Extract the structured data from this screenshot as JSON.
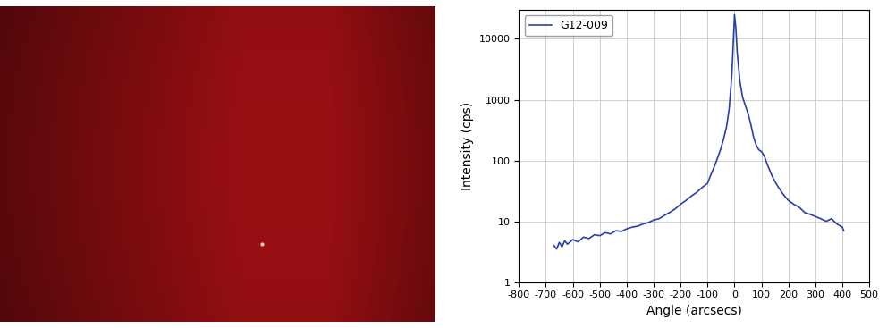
{
  "chart_data": {
    "type": "line",
    "log": "y",
    "grid": true,
    "legend": "upper left",
    "x_label": "Angle (arcsecs)",
    "y_label": "Intensity (cps)",
    "x": [
      -670,
      -660,
      -650,
      -640,
      -630,
      -620,
      -600,
      -580,
      -560,
      -540,
      -520,
      -500,
      -480,
      -460,
      -440,
      -420,
      -400,
      -380,
      -360,
      -340,
      -320,
      -300,
      -280,
      -260,
      -240,
      -220,
      -200,
      -180,
      -160,
      -140,
      -120,
      -100,
      -90,
      -80,
      -70,
      -60,
      -50,
      -40,
      -30,
      -20,
      -10,
      0,
      5,
      10,
      20,
      30,
      40,
      50,
      60,
      70,
      80,
      90,
      100,
      110,
      120,
      130,
      140,
      150,
      160,
      180,
      200,
      220,
      240,
      260,
      280,
      300,
      320,
      340,
      360,
      380,
      400,
      405
    ],
    "series": [
      {
        "name": "G12-009",
        "color": "#2b3fa6",
        "values": [
          4,
          3.5,
          4.5,
          3.8,
          4.8,
          4.2,
          5,
          4.6,
          5.5,
          5.2,
          6,
          5.8,
          6.5,
          6.2,
          7,
          6.8,
          7.5,
          8,
          8.3,
          9,
          9.5,
          10.5,
          11,
          12.5,
          14,
          16,
          19,
          22,
          26,
          30,
          36,
          42,
          55,
          70,
          90,
          120,
          160,
          230,
          350,
          700,
          2500,
          25000,
          15000,
          6000,
          2000,
          1100,
          800,
          600,
          400,
          250,
          180,
          150,
          140,
          120,
          90,
          70,
          55,
          45,
          38,
          28,
          22,
          19,
          17,
          14,
          13,
          12,
          11,
          10,
          11,
          9,
          8,
          7
        ]
      }
    ],
    "xlim": [
      -800,
      500
    ],
    "xticks": [
      -800,
      -700,
      -600,
      -500,
      -400,
      -300,
      -200,
      -100,
      0,
      100,
      200,
      300,
      400,
      500
    ],
    "ylim": [
      1,
      30000
    ],
    "yticks": [
      1,
      10,
      100,
      1000,
      10000
    ]
  }
}
